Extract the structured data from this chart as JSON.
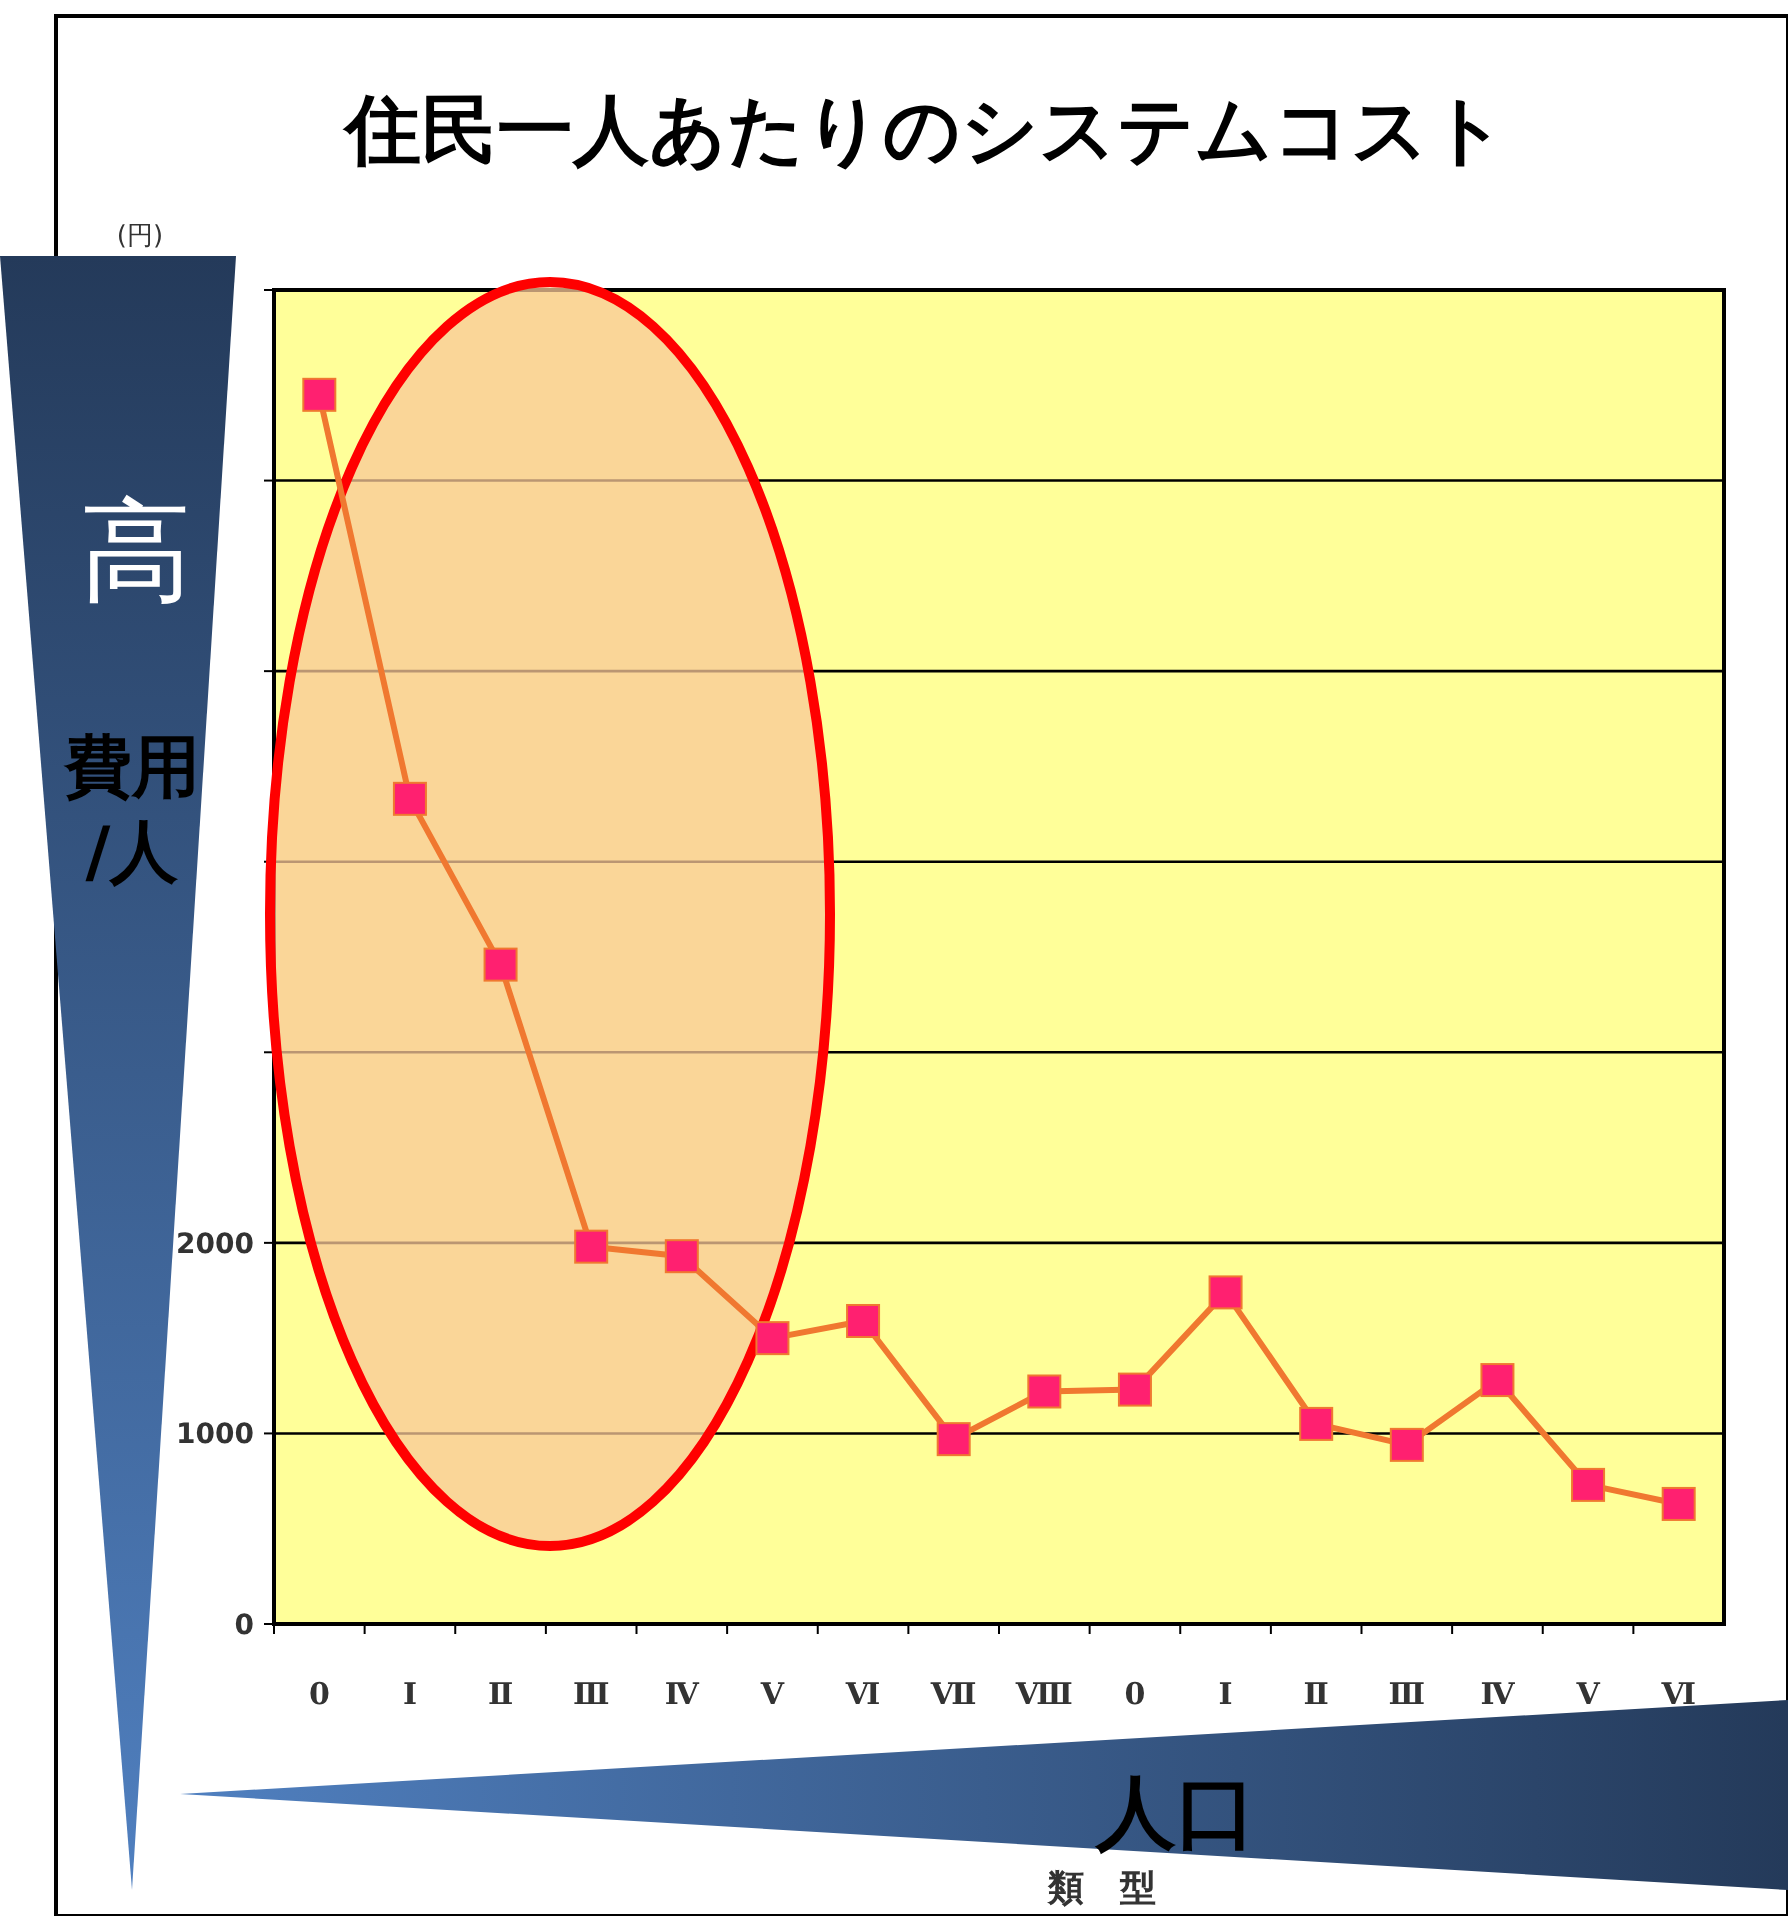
{
  "chart_data": {
    "type": "line",
    "title": "住民一人あたりのシステムコスト",
    "ylabel": "(円)",
    "xlabel": "類　型",
    "categories": [
      "0",
      "Ⅰ",
      "Ⅱ",
      "Ⅲ",
      "Ⅳ",
      "Ⅴ",
      "Ⅵ",
      "Ⅶ",
      "Ⅷ",
      "0",
      "Ⅰ",
      "Ⅱ",
      "Ⅲ",
      "Ⅳ",
      "Ⅴ",
      "Ⅵ"
    ],
    "series": [
      {
        "color": "#f07830",
        "values": [
          6450,
          4330,
          3460,
          1980,
          1930,
          1500,
          1590,
          970,
          1220,
          1230,
          1740,
          1050,
          940,
          1280,
          730,
          630
        ]
      }
    ],
    "ylim": [
      0,
      7000
    ],
    "yticks": [
      0,
      1000,
      2000,
      {
        "value": 3000,
        "label": null
      },
      {
        "value": 4000,
        "label": null
      },
      {
        "value": 5000,
        "label": null
      },
      {
        "value": 6000,
        "label": null
      },
      {
        "value": 7000,
        "label": null
      }
    ],
    "grid": "y",
    "marker": "square",
    "line_style": "solid",
    "annotations": [
      "高",
      "費用/人",
      "人口"
    ]
  }
}
